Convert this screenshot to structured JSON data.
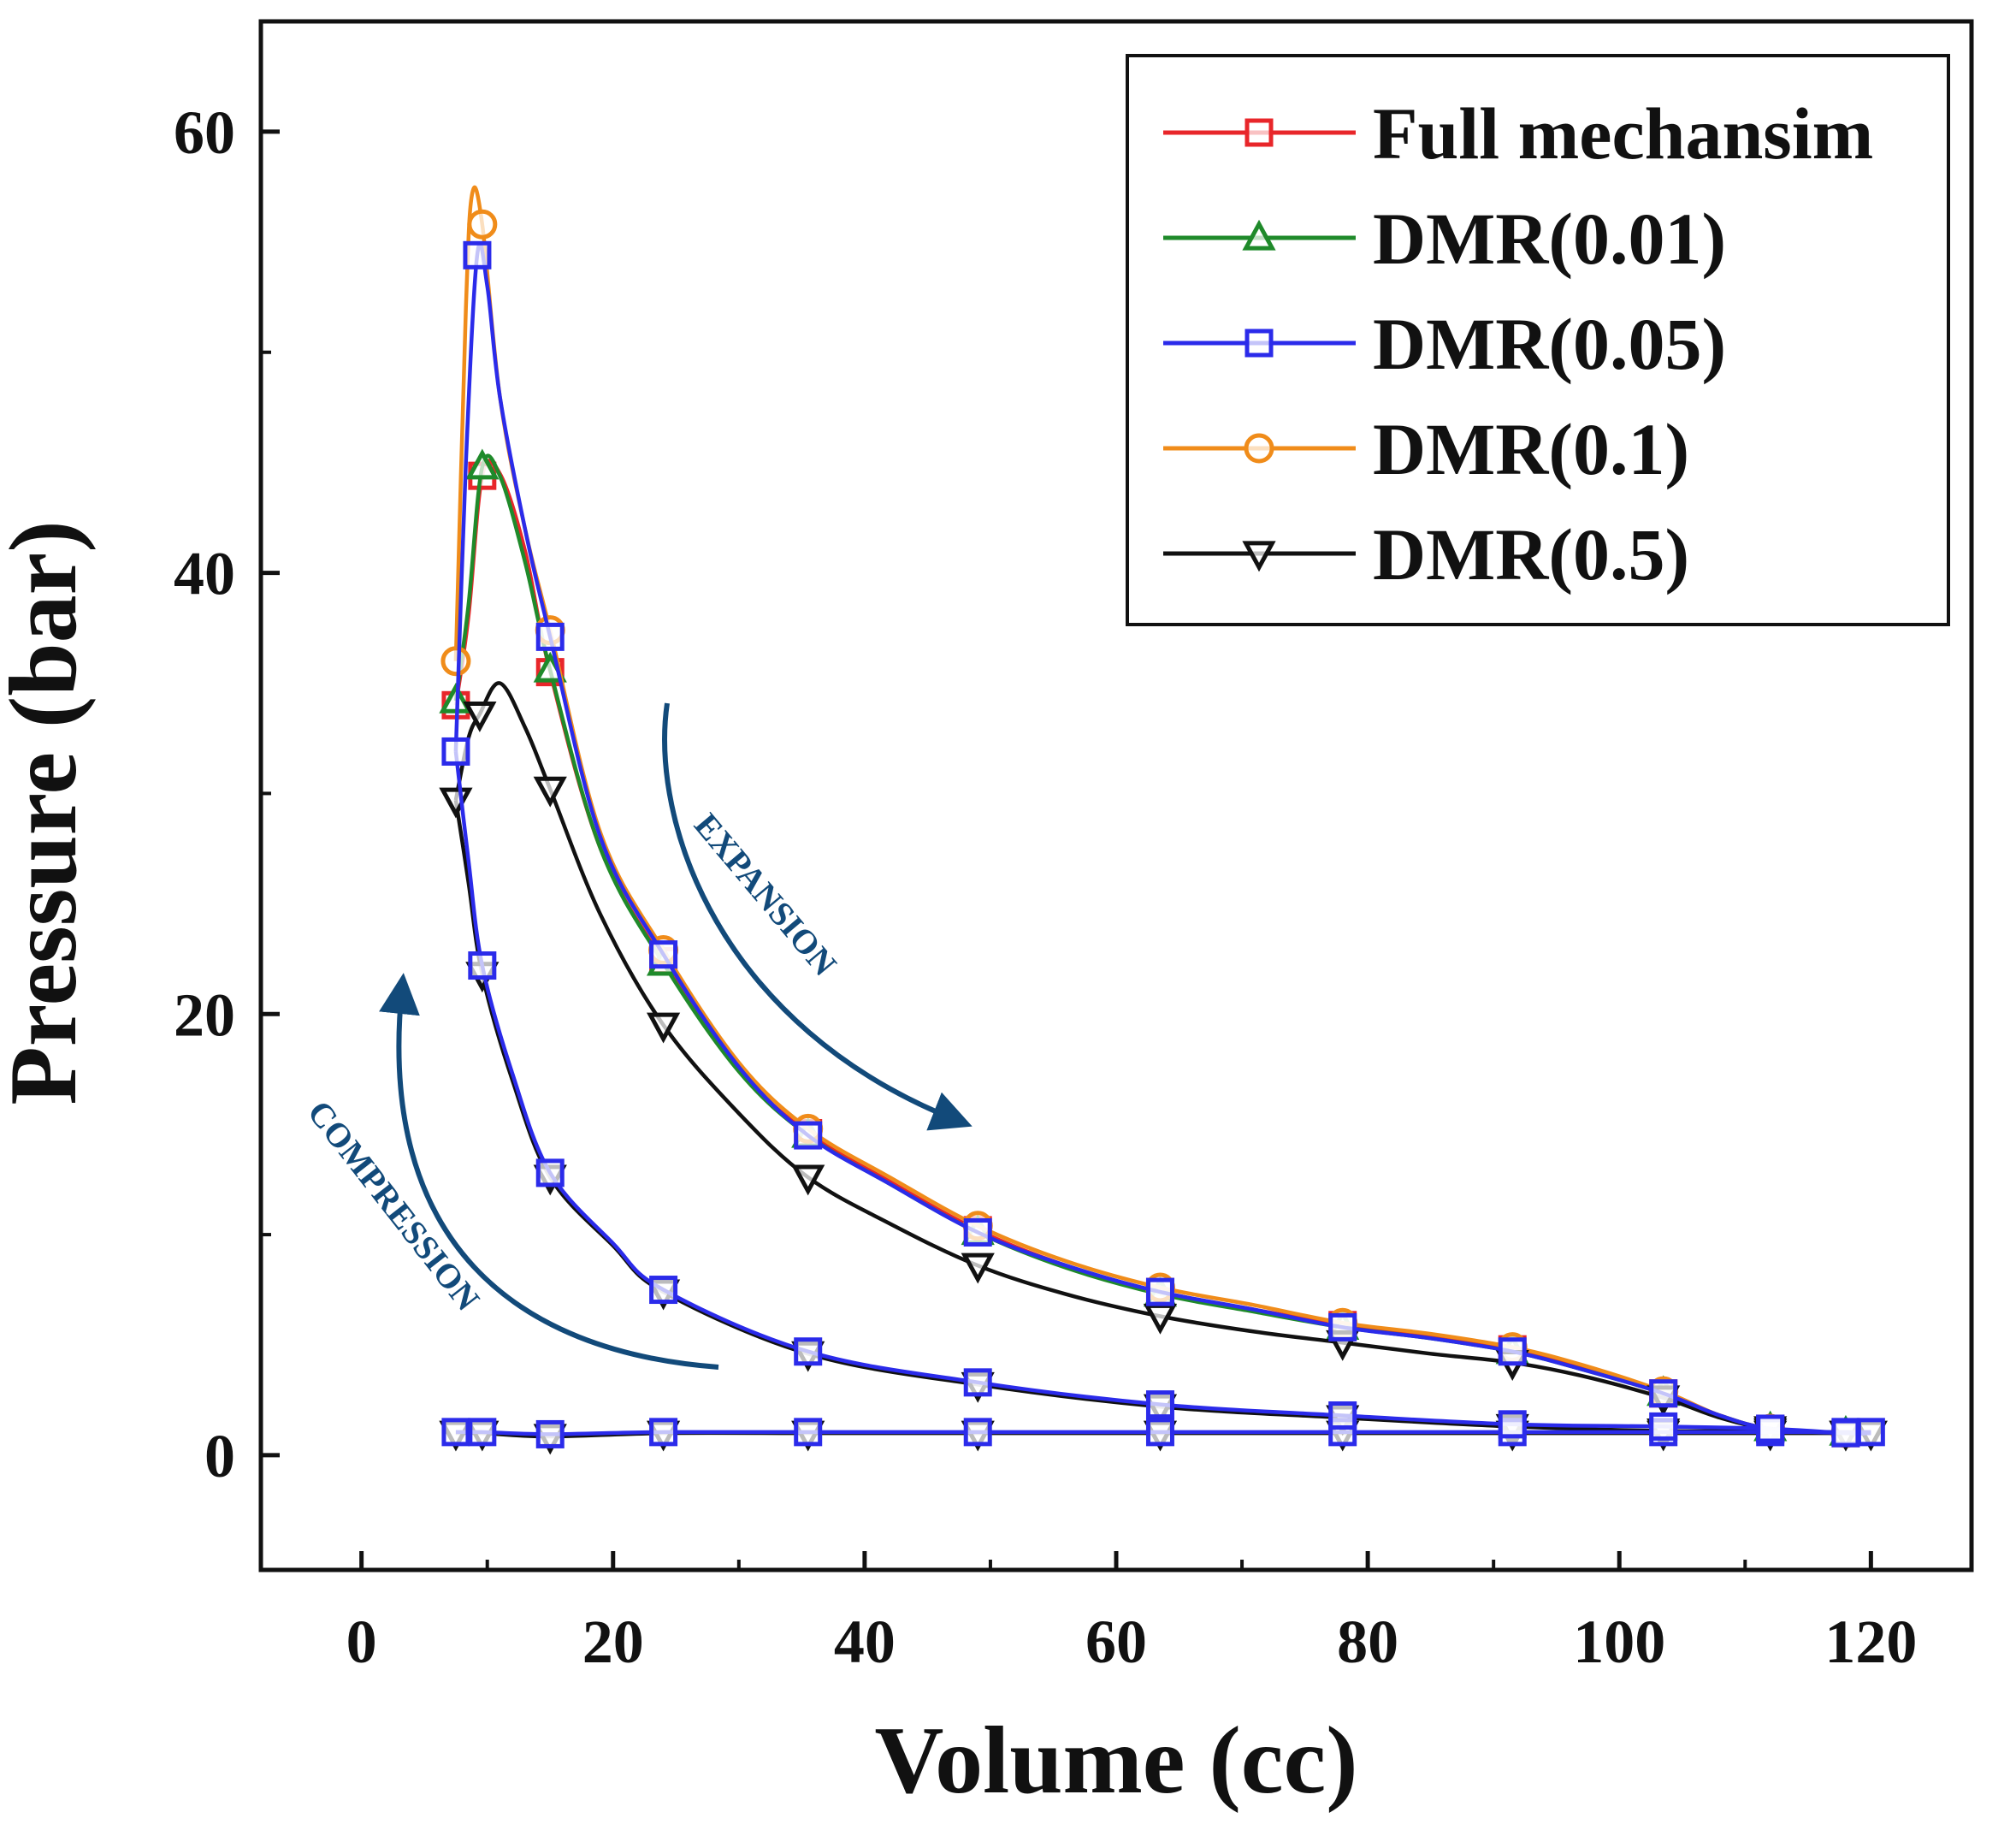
{
  "chart_data": {
    "type": "line",
    "title": "",
    "xlabel": "Volume (cc)",
    "ylabel": "Pressure (bar)",
    "xlim": [
      -8,
      128
    ],
    "ylim": [
      -5.2,
      65
    ],
    "xticks": [
      0,
      20,
      40,
      60,
      80,
      100,
      120
    ],
    "yticks": [
      0,
      20,
      40,
      60
    ],
    "grid": false,
    "legend_position": "top-right",
    "colors": {
      "full": "#e8262a",
      "dmr001": "#1f8a2a",
      "dmr005": "#2b2bea",
      "dmr01": "#f08c1a",
      "dmr05": "#111111",
      "annotation": "#124a7a"
    },
    "legend": [
      {
        "label": "Full mechansim",
        "color": "#e8262a",
        "marker": "square"
      },
      {
        "label": "DMR(0.01)",
        "color": "#1f8a2a",
        "marker": "triangle-up"
      },
      {
        "label": "DMR(0.05)",
        "color": "#2b2bea",
        "marker": "square"
      },
      {
        "label": "DMR(0.1)",
        "color": "#f08c1a",
        "marker": "circle"
      },
      {
        "label": "DMR(0.5)",
        "color": "#111111",
        "marker": "triangle-down"
      }
    ],
    "annotations": {
      "expansion": "EXPANSION",
      "compression": "COMPRESSION"
    },
    "series": [
      {
        "name": "Full mechansim",
        "color": "#e8262a",
        "marker": "square",
        "expansion": {
          "line_x": [
            7.5,
            8.5,
            9.6,
            11,
            13,
            15,
            19,
            24,
            30,
            35.5,
            42,
            49,
            56,
            63.5,
            71,
            78,
            85,
            91.5,
            97,
            103.5,
            108,
            112,
            118,
            120
          ],
          "line_y": [
            34,
            38,
            44.4,
            44.5,
            41,
            35.5,
            27.5,
            22.4,
            17.5,
            14.6,
            12.4,
            10.2,
            8.6,
            7.4,
            6.6,
            5.9,
            5.4,
            4.8,
            4.0,
            2.8,
            1.8,
            1.2,
            1.0,
            1.0
          ],
          "marker_x": [
            7.5,
            9.6,
            15,
            24,
            35.5,
            49,
            63.5,
            78,
            91.5,
            103.5,
            112,
            118
          ],
          "marker_y": [
            34,
            44.4,
            35.5,
            22.4,
            14.6,
            10.2,
            7.4,
            5.9,
            4.8,
            2.8,
            1.2,
            1.0
          ]
        }
      },
      {
        "name": "DMR(0.01)",
        "color": "#1f8a2a",
        "marker": "triangle-up",
        "expansion": {
          "line_x": [
            7.5,
            8.5,
            9.6,
            11,
            13,
            15,
            19,
            24,
            30,
            35.5,
            42,
            49,
            56,
            63.5,
            71,
            78,
            85,
            91.5,
            97,
            103.5,
            108,
            112,
            118,
            120
          ],
          "line_y": [
            34.2,
            38.5,
            44.8,
            44.4,
            40.5,
            35.6,
            27.5,
            22.3,
            17.4,
            14.5,
            12.3,
            10.1,
            8.5,
            7.3,
            6.5,
            5.8,
            5.3,
            4.7,
            3.9,
            2.8,
            1.8,
            1.2,
            1.0,
            1.0
          ],
          "marker_x": [
            7.5,
            9.6,
            15,
            24,
            35.5,
            49,
            63.5,
            78,
            91.5,
            103.5,
            112,
            118
          ],
          "marker_y": [
            34.2,
            44.8,
            35.6,
            22.3,
            14.5,
            10.1,
            7.3,
            5.8,
            4.7,
            2.8,
            1.2,
            1.0
          ]
        }
      },
      {
        "name": "DMR(0.1)",
        "color": "#f08c1a",
        "marker": "circle",
        "expansion": {
          "line_x": [
            7.5,
            8.3,
            8.8,
            9.6,
            11,
            13,
            15,
            19,
            24,
            30,
            35.5,
            42,
            49,
            56,
            63.5,
            71,
            78,
            85,
            91.5,
            97,
            103.5,
            108,
            112,
            118,
            120
          ],
          "line_y": [
            36,
            52,
            57.2,
            55.8,
            48,
            42,
            37.4,
            28.2,
            22.9,
            17.8,
            14.8,
            12.6,
            10.4,
            8.8,
            7.6,
            6.8,
            6.0,
            5.5,
            4.9,
            4.1,
            2.9,
            1.8,
            1.2,
            1.0,
            1.0
          ],
          "marker_x": [
            7.5,
            9.6,
            15,
            24,
            35.5,
            49,
            63.5,
            78,
            91.5,
            103.5,
            112,
            118
          ],
          "marker_y": [
            36,
            55.8,
            37.4,
            22.9,
            14.8,
            10.4,
            7.6,
            6.0,
            4.9,
            2.9,
            1.2,
            1.0
          ]
        }
      },
      {
        "name": "DMR(0.5)",
        "color": "#111111",
        "marker": "triangle-down",
        "expansion": {
          "line_x": [
            7.5,
            8.5,
            9.4,
            11,
            13,
            15,
            19,
            24,
            30,
            35.5,
            42,
            49,
            56,
            63.5,
            71,
            78,
            85,
            91.5,
            97,
            103.5,
            108,
            112,
            118,
            120
          ],
          "line_y": [
            29.7,
            32.5,
            33.6,
            35,
            33,
            30.2,
            24.5,
            19.5,
            15.5,
            12.6,
            10.5,
            8.6,
            7.3,
            6.3,
            5.6,
            5.1,
            4.6,
            4.2,
            3.6,
            2.6,
            1.7,
            1.2,
            1.0,
            1.0
          ],
          "marker_x": [
            7.5,
            9.4,
            15,
            24,
            35.5,
            49,
            63.5,
            78,
            91.5,
            103.5,
            112,
            118
          ],
          "marker_y": [
            29.7,
            33.6,
            30.2,
            19.5,
            12.6,
            8.6,
            6.3,
            5.1,
            4.2,
            2.6,
            1.2,
            1.0
          ]
        },
        "compression": {
          "line_x": [
            120,
            118,
            112,
            103.5,
            91.5,
            78,
            63.5,
            49,
            35.5,
            24,
            20,
            15,
            12,
            9.6,
            8.5,
            7.5
          ],
          "line_y": [
            1.0,
            1.0,
            1.1,
            1.1,
            1.3,
            1.7,
            2.2,
            3.2,
            4.6,
            7.4,
            9.5,
            12.6,
            17,
            21.8,
            26,
            29.7
          ],
          "marker_x": [
            9.6,
            15,
            24,
            35.5,
            49,
            63.5,
            78,
            91.5,
            103.5,
            112
          ],
          "marker_y": [
            21.8,
            12.6,
            7.4,
            4.6,
            3.2,
            2.2,
            1.7,
            1.3,
            1.1,
            1.1
          ]
        },
        "intake": {
          "line_x": [
            7.5,
            9.6,
            15,
            24,
            35.5,
            49,
            63.5,
            78,
            91.5,
            103.5,
            112,
            118,
            120
          ],
          "line_y": [
            1.0,
            1.0,
            0.85,
            1.0,
            1.0,
            1.0,
            1.0,
            1.0,
            1.0,
            1.0,
            1.0,
            1.0,
            1.0
          ],
          "marker_x": [
            7.5,
            9.6,
            15,
            24,
            35.5,
            49,
            63.5,
            78,
            91.5,
            103.5,
            112,
            118,
            120
          ],
          "marker_y": [
            1.0,
            1.0,
            0.85,
            1.0,
            1.0,
            1.0,
            1.0,
            1.0,
            1.0,
            1.0,
            1.0,
            1.0,
            1.0
          ]
        }
      },
      {
        "name": "DMR(0.05)",
        "color": "#2b2bea",
        "marker": "square",
        "expansion": {
          "line_x": [
            7.5,
            8.3,
            9.2,
            10,
            11,
            13,
            15,
            19,
            24,
            30,
            35.5,
            42,
            49,
            56,
            63.5,
            71,
            78,
            85,
            91.5,
            97,
            103.5,
            108,
            112,
            118,
            120
          ],
          "line_y": [
            31.9,
            45,
            54.4,
            53,
            48,
            42,
            37.1,
            28.0,
            22.7,
            17.6,
            14.5,
            12.3,
            10.1,
            8.6,
            7.4,
            6.6,
            5.8,
            5.3,
            4.7,
            3.9,
            2.8,
            1.8,
            1.2,
            1.0,
            1.0
          ],
          "marker_x": [
            7.5,
            9.2,
            15,
            24,
            35.5,
            49,
            63.5,
            78,
            91.5,
            103.5,
            112,
            118
          ],
          "marker_y": [
            31.9,
            54.4,
            37.1,
            22.7,
            14.5,
            10.1,
            7.4,
            5.8,
            4.7,
            2.8,
            1.2,
            1.0
          ]
        },
        "compression": {
          "line_x": [
            120,
            118,
            112,
            103.5,
            91.5,
            78,
            63.5,
            49,
            35.5,
            24,
            20,
            15,
            12,
            9.6,
            8.5,
            7.5
          ],
          "line_y": [
            1.0,
            1.0,
            1.2,
            1.3,
            1.4,
            1.8,
            2.3,
            3.3,
            4.7,
            7.5,
            9.6,
            12.8,
            17.3,
            22.2,
            27,
            31.9
          ],
          "marker_x": [
            9.6,
            15,
            24,
            35.5,
            49,
            63.5,
            78,
            91.5,
            103.5,
            112
          ],
          "marker_y": [
            22.2,
            12.8,
            7.5,
            4.7,
            3.3,
            2.3,
            1.8,
            1.4,
            1.3,
            1.2
          ]
        },
        "intake": {
          "line_x": [
            7.5,
            9.6,
            15,
            24,
            35.5,
            49,
            63.5,
            78,
            91.5,
            103.5,
            112,
            118,
            120
          ],
          "line_y": [
            1.05,
            1.05,
            0.95,
            1.05,
            1.05,
            1.05,
            1.05,
            1.05,
            1.05,
            1.05,
            1.05,
            1.05,
            1.05
          ],
          "marker_x": [
            7.5,
            9.6,
            15,
            24,
            35.5,
            49,
            63.5,
            78,
            91.5,
            103.5,
            112,
            118,
            120
          ],
          "marker_y": [
            1.05,
            1.05,
            0.95,
            1.05,
            1.05,
            1.05,
            1.05,
            1.05,
            1.05,
            1.05,
            1.05,
            1.05,
            1.05
          ]
        }
      }
    ]
  }
}
